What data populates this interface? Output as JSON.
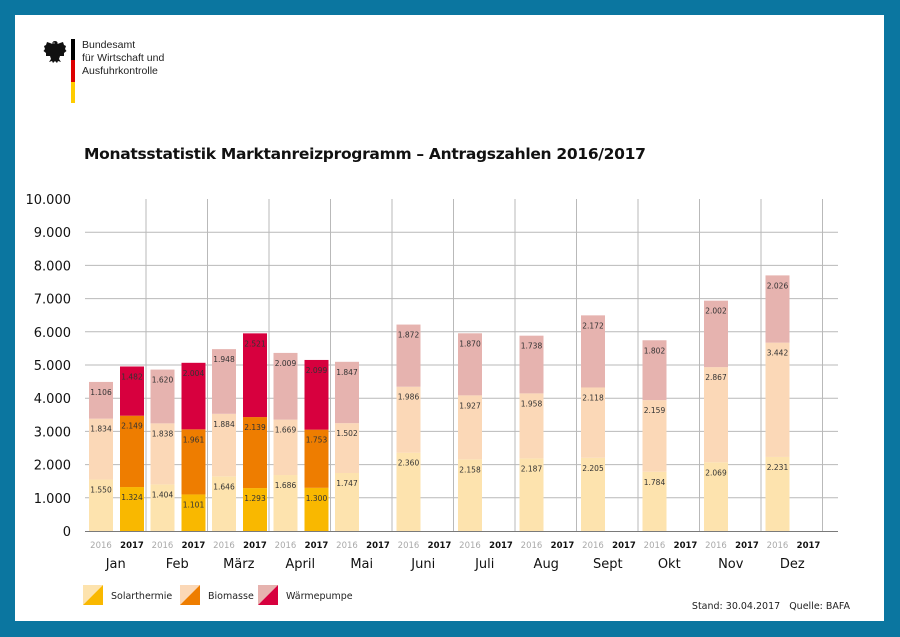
{
  "header": {
    "org_lines": [
      "Bundesamt",
      "für Wirtschaft und",
      "Ausfuhrkontrolle"
    ],
    "flag_colors": [
      "#000000",
      "#DD0000",
      "#FFCC00"
    ]
  },
  "footer": {
    "stand": "Stand: 30.04.2017",
    "quelle": "Quelle: BAFA"
  },
  "chart_data": {
    "type": "bar",
    "stacked": true,
    "title": "Monatsstatistik Marktanreizprogramm – Antragszahlen 2016/2017",
    "xlabel": "",
    "ylabel": "",
    "ylim": [
      0,
      10000
    ],
    "yticks": [
      0,
      1000,
      2000,
      3000,
      4000,
      5000,
      6000,
      7000,
      8000,
      9000,
      10000
    ],
    "ytick_labels": [
      "0",
      "1.000",
      "2.000",
      "3.000",
      "4.000",
      "5.000",
      "6.000",
      "7.000",
      "8.000",
      "9.000",
      "10.000"
    ],
    "grid": true,
    "categories": [
      "Jan",
      "Feb",
      "März",
      "April",
      "Mai",
      "Juni",
      "Juli",
      "Aug",
      "Sept",
      "Okt",
      "Nov",
      "Dez"
    ],
    "years": [
      "2016",
      "2017"
    ],
    "series": [
      {
        "name": "Solarthermie",
        "colors": {
          "2016": "#FDE3AE",
          "2017": "#F9B800"
        },
        "values": {
          "2016": [
            1550,
            1404,
            1646,
            1686,
            1747,
            2360,
            2158,
            2187,
            2205,
            1784,
            2069,
            2231
          ],
          "2017": [
            1324,
            1101,
            1293,
            1300,
            null,
            null,
            null,
            null,
            null,
            null,
            null,
            null
          ]
        },
        "labels": {
          "2016": [
            "1.550",
            "1.404",
            "1.646",
            "1.686",
            "1.747",
            "2.360",
            "2.158",
            "2.187",
            "2.205",
            "1.784",
            "2.069",
            "2.231"
          ],
          "2017": [
            "1.324",
            "1.101",
            "1.293",
            "1.300",
            null,
            null,
            null,
            null,
            null,
            null,
            null,
            null
          ]
        }
      },
      {
        "name": "Biomasse",
        "colors": {
          "2016": "#FBD8B7",
          "2017": "#EE7D00"
        },
        "values": {
          "2016": [
            1834,
            1838,
            1884,
            1669,
            1502,
            1986,
            1927,
            1958,
            2118,
            2159,
            2867,
            3442
          ],
          "2017": [
            2149,
            1961,
            2139,
            1753,
            null,
            null,
            null,
            null,
            null,
            null,
            null,
            null
          ]
        },
        "labels": {
          "2016": [
            "1.834",
            "1.838",
            "1.884",
            "1.669",
            "1.502",
            "1.986",
            "1.927",
            "1.958",
            "2.118",
            "2.159",
            "2.867",
            "3.442"
          ],
          "2017": [
            "2.149",
            "1.961",
            "2.139",
            "1.753",
            null,
            null,
            null,
            null,
            null,
            null,
            null,
            null
          ]
        }
      },
      {
        "name": "Wärmepumpe",
        "colors": {
          "2016": "#E6B3AF",
          "2017": "#D7003E"
        },
        "values": {
          "2016": [
            1106,
            1620,
            1948,
            2009,
            1847,
            1872,
            1870,
            1738,
            2172,
            1802,
            2002,
            2026
          ],
          "2017": [
            1482,
            2004,
            2521,
            2099,
            null,
            null,
            null,
            null,
            null,
            null,
            null,
            null
          ]
        },
        "labels": {
          "2016": [
            "1.106",
            "1.620",
            "1.948",
            "2.009",
            "1.847",
            "1.872",
            "1.870",
            "1.738",
            "2.172",
            "1.802",
            "2.002",
            "2.026"
          ],
          "2017": [
            "1.482",
            "2.004",
            "2.521",
            "2.099",
            null,
            null,
            null,
            null,
            null,
            null,
            null,
            null
          ]
        }
      }
    ],
    "legend": {
      "placement": "bottom-left",
      "entries": [
        "Solarthermie",
        "Biomasse",
        "Wärmepumpe"
      ]
    }
  }
}
